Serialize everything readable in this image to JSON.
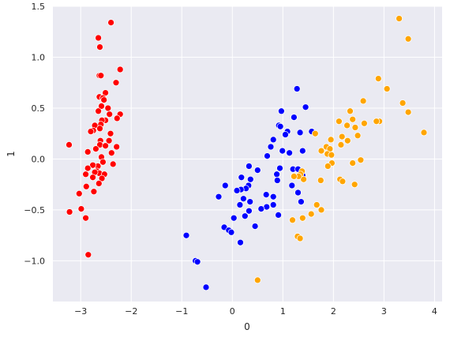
{
  "chart_data": {
    "type": "scatter",
    "title": "",
    "xlabel": "0",
    "ylabel": "1",
    "xlim": [
      -3.55,
      4.15
    ],
    "ylim": [
      -1.4,
      1.5
    ],
    "xticks": [
      -3,
      -2,
      -1,
      0,
      1,
      2,
      3,
      4
    ],
    "xtick_labels": [
      "−3",
      "−2",
      "−1",
      "0",
      "1",
      "2",
      "3",
      "4"
    ],
    "yticks": [
      -1.0,
      -0.5,
      0.0,
      0.5,
      1.0,
      1.5
    ],
    "ytick_labels": [
      "−1.0",
      "−0.5",
      "0.0",
      "0.5",
      "1.0",
      "1.5"
    ],
    "grid": true,
    "legend": "none",
    "background_color": "#eaeaf2",
    "series": [
      {
        "color": "#ff0000",
        "points": [
          [
            -2.4,
            1.34
          ],
          [
            -2.65,
            1.19
          ],
          [
            -2.62,
            1.1
          ],
          [
            -2.22,
            0.88
          ],
          [
            -2.63,
            0.82
          ],
          [
            -2.6,
            0.82
          ],
          [
            -2.3,
            0.75
          ],
          [
            -2.51,
            0.65
          ],
          [
            -2.63,
            0.61
          ],
          [
            -2.56,
            0.6
          ],
          [
            -2.54,
            0.58
          ],
          [
            -2.59,
            0.52
          ],
          [
            -2.46,
            0.5
          ],
          [
            -2.65,
            0.47
          ],
          [
            -2.43,
            0.44
          ],
          [
            -2.22,
            0.44
          ],
          [
            -2.28,
            0.4
          ],
          [
            -2.51,
            0.38
          ],
          [
            -2.58,
            0.38
          ],
          [
            -2.6,
            0.34
          ],
          [
            -2.72,
            0.33
          ],
          [
            -2.62,
            0.3
          ],
          [
            -2.75,
            0.28
          ],
          [
            -2.8,
            0.27
          ],
          [
            -2.41,
            0.25
          ],
          [
            -2.44,
            0.18
          ],
          [
            -2.61,
            0.18
          ],
          [
            -2.62,
            0.14
          ],
          [
            -2.51,
            0.13
          ],
          [
            -2.29,
            0.12
          ],
          [
            -2.7,
            0.1
          ],
          [
            -3.23,
            0.14
          ],
          [
            -2.86,
            0.07
          ],
          [
            -2.39,
            0.06
          ],
          [
            -2.59,
            0.02
          ],
          [
            -2.56,
            -0.03
          ],
          [
            -2.66,
            -0.07
          ],
          [
            -2.36,
            -0.05
          ],
          [
            -2.76,
            -0.06
          ],
          [
            -2.86,
            -0.09
          ],
          [
            -2.68,
            -0.12
          ],
          [
            -2.63,
            -0.14
          ],
          [
            -2.72,
            -0.13
          ],
          [
            -2.9,
            -0.15
          ],
          [
            -2.53,
            -0.15
          ],
          [
            -2.58,
            -0.19
          ],
          [
            -2.76,
            -0.18
          ],
          [
            -2.64,
            -0.24
          ],
          [
            -2.89,
            -0.27
          ],
          [
            -2.74,
            -0.32
          ],
          [
            -3.03,
            -0.34
          ],
          [
            -2.99,
            -0.49
          ],
          [
            -3.22,
            -0.52
          ],
          [
            -2.9,
            -0.58
          ],
          [
            -2.85,
            -0.94
          ]
        ]
      },
      {
        "color": "#0000ff",
        "points": [
          [
            1.28,
            0.69
          ],
          [
            1.45,
            0.51
          ],
          [
            1.22,
            0.41
          ],
          [
            0.97,
            0.47
          ],
          [
            0.92,
            0.33
          ],
          [
            0.95,
            0.32
          ],
          [
            1.09,
            0.27
          ],
          [
            1.34,
            0.26
          ],
          [
            1.57,
            0.27
          ],
          [
            1.05,
            0.24
          ],
          [
            0.81,
            0.19
          ],
          [
            0.76,
            0.12
          ],
          [
            0.99,
            0.08
          ],
          [
            1.13,
            0.06
          ],
          [
            0.69,
            0.03
          ],
          [
            1.39,
            0.08
          ],
          [
            0.33,
            -0.07
          ],
          [
            0.94,
            -0.09
          ],
          [
            0.5,
            -0.11
          ],
          [
            0.88,
            -0.15
          ],
          [
            0.18,
            -0.18
          ],
          [
            1.2,
            -0.1
          ],
          [
            1.3,
            -0.1
          ],
          [
            1.39,
            -0.16
          ],
          [
            0.89,
            -0.21
          ],
          [
            1.18,
            -0.26
          ],
          [
            0.36,
            -0.2
          ],
          [
            0.32,
            -0.26
          ],
          [
            0.27,
            -0.29
          ],
          [
            0.17,
            -0.3
          ],
          [
            0.09,
            -0.31
          ],
          [
            1.3,
            -0.33
          ],
          [
            -0.14,
            -0.26
          ],
          [
            0.67,
            -0.35
          ],
          [
            0.81,
            -0.37
          ],
          [
            -0.27,
            -0.37
          ],
          [
            0.22,
            -0.39
          ],
          [
            0.35,
            -0.42
          ],
          [
            1.36,
            -0.42
          ],
          [
            0.15,
            -0.45
          ],
          [
            0.81,
            -0.45
          ],
          [
            0.68,
            -0.47
          ],
          [
            0.57,
            -0.49
          ],
          [
            0.33,
            -0.51
          ],
          [
            0.25,
            -0.56
          ],
          [
            0.03,
            -0.58
          ],
          [
            0.91,
            -0.55
          ],
          [
            -0.16,
            -0.67
          ],
          [
            0.45,
            -0.66
          ],
          [
            -0.07,
            -0.7
          ],
          [
            -0.02,
            -0.72
          ],
          [
            0.16,
            -0.82
          ],
          [
            -0.91,
            -0.75
          ],
          [
            -0.73,
            -1.0
          ],
          [
            -0.69,
            -1.01
          ],
          [
            -0.52,
            -1.26
          ]
        ]
      },
      {
        "color": "#ffa500",
        "points": [
          [
            3.3,
            1.38
          ],
          [
            3.48,
            1.18
          ],
          [
            2.89,
            0.79
          ],
          [
            3.06,
            0.69
          ],
          [
            2.59,
            0.57
          ],
          [
            3.37,
            0.55
          ],
          [
            3.48,
            0.46
          ],
          [
            2.33,
            0.47
          ],
          [
            2.11,
            0.37
          ],
          [
            2.27,
            0.33
          ],
          [
            2.38,
            0.39
          ],
          [
            2.43,
            0.31
          ],
          [
            2.61,
            0.35
          ],
          [
            2.48,
            0.23
          ],
          [
            2.91,
            0.37
          ],
          [
            2.85,
            0.37
          ],
          [
            1.64,
            0.25
          ],
          [
            2.17,
            0.22
          ],
          [
            1.95,
            0.19
          ],
          [
            2.28,
            0.18
          ],
          [
            2.15,
            0.14
          ],
          [
            1.86,
            0.12
          ],
          [
            1.93,
            0.1
          ],
          [
            1.76,
            0.08
          ],
          [
            1.88,
            0.05
          ],
          [
            1.96,
            0.04
          ],
          [
            3.79,
            0.26
          ],
          [
            2.54,
            -0.01
          ],
          [
            2.38,
            -0.04
          ],
          [
            1.97,
            -0.04
          ],
          [
            1.89,
            -0.07
          ],
          [
            1.38,
            -0.12
          ],
          [
            1.35,
            -0.15
          ],
          [
            1.75,
            -0.21
          ],
          [
            1.41,
            -0.2
          ],
          [
            2.13,
            -0.2
          ],
          [
            2.18,
            -0.22
          ],
          [
            2.42,
            -0.25
          ],
          [
            1.31,
            -0.17
          ],
          [
            1.22,
            -0.17
          ],
          [
            1.67,
            -0.45
          ],
          [
            1.56,
            -0.54
          ],
          [
            1.76,
            -0.5
          ],
          [
            1.39,
            -0.58
          ],
          [
            1.19,
            -0.6
          ],
          [
            1.29,
            -0.76
          ],
          [
            1.34,
            -0.78
          ],
          [
            0.5,
            -1.19
          ]
        ]
      }
    ]
  }
}
